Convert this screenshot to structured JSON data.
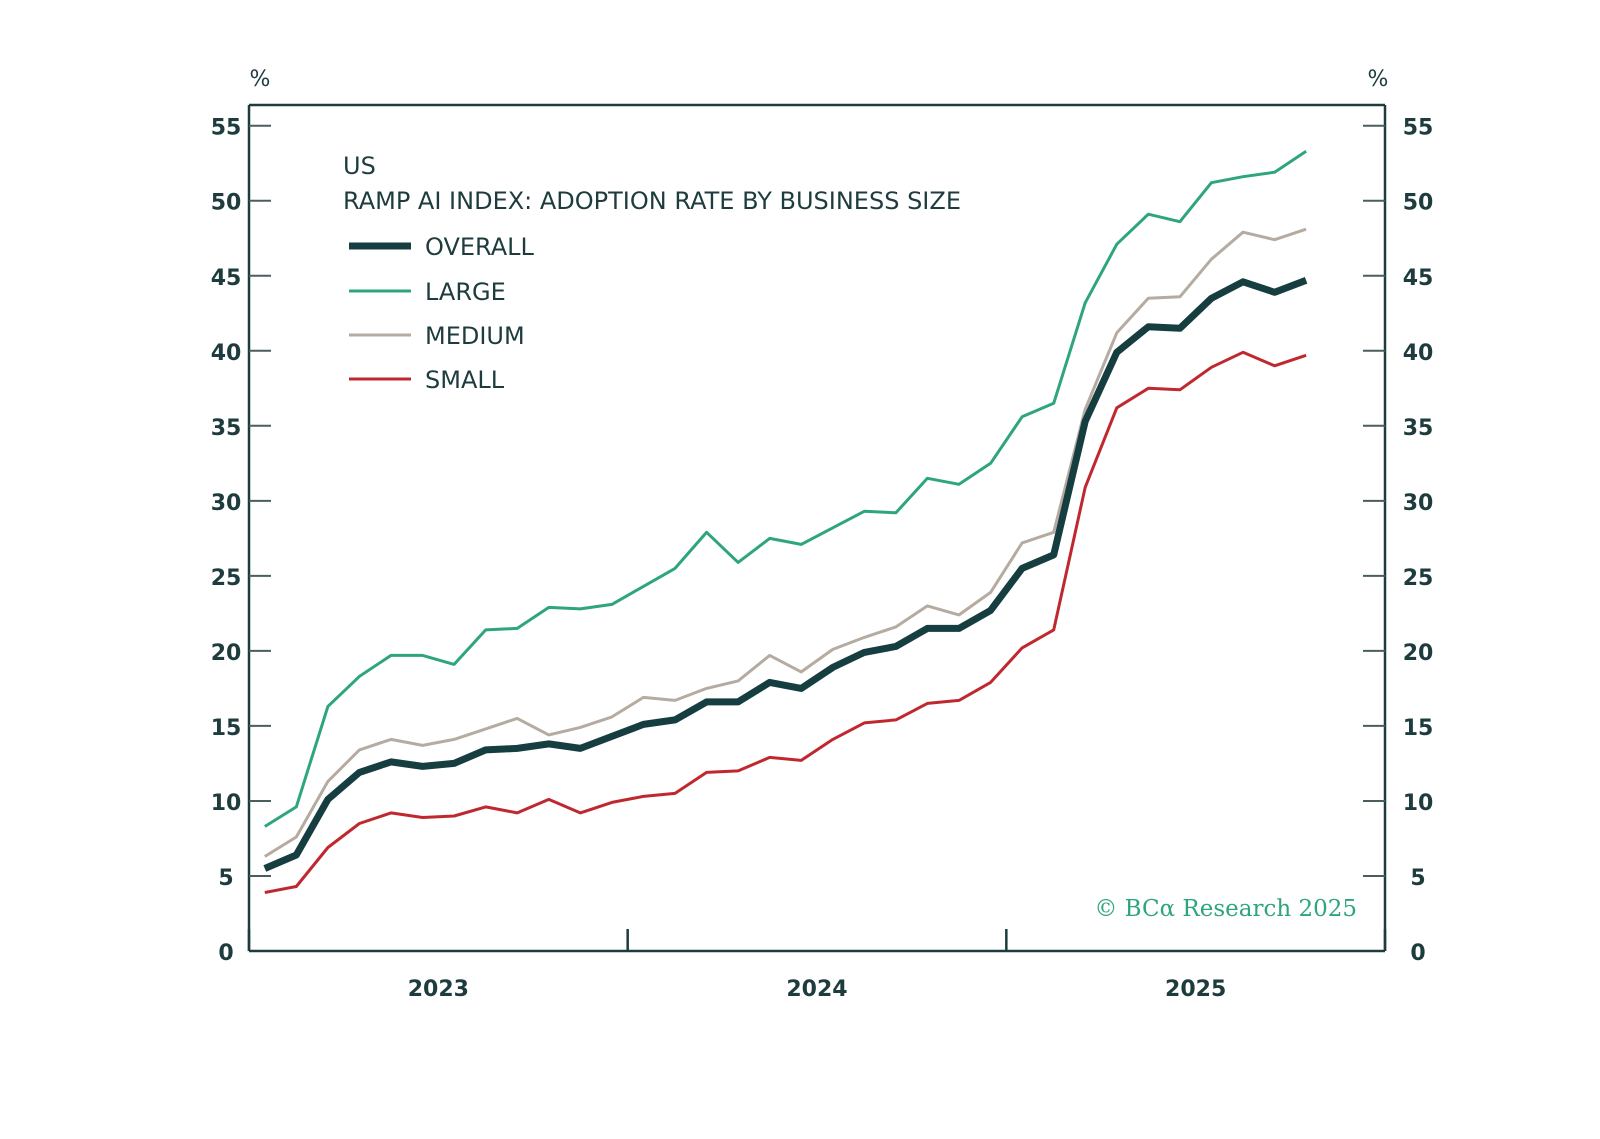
{
  "chart_data": {
    "type": "line",
    "title": "RAMP AI INDEX: ADOPTION RATE BY BUSINESS SIZE",
    "subtitle": "US",
    "xlabel": "",
    "ylabel_left": "%",
    "ylabel_right": "%",
    "ylim": [
      0,
      55
    ],
    "yticks": [
      0,
      5,
      10,
      15,
      20,
      25,
      30,
      35,
      40,
      45,
      50,
      55
    ],
    "xrange": [
      "2023-01",
      "2025-12"
    ],
    "year_labels": [
      "2023",
      "2024",
      "2025"
    ],
    "legend_position": "top-left",
    "grid": false,
    "credit": "© BCα Research 2025",
    "x": [
      "2023-01",
      "2023-02",
      "2023-03",
      "2023-04",
      "2023-05",
      "2023-06",
      "2023-07",
      "2023-08",
      "2023-09",
      "2023-10",
      "2023-11",
      "2023-12",
      "2024-01",
      "2024-02",
      "2024-03",
      "2024-04",
      "2024-05",
      "2024-06",
      "2024-07",
      "2024-08",
      "2024-09",
      "2024-10",
      "2024-11",
      "2024-12",
      "2025-01",
      "2025-02",
      "2025-03",
      "2025-04",
      "2025-05",
      "2025-06",
      "2025-07",
      "2025-08",
      "2025-09",
      "2025-10"
    ],
    "series": [
      {
        "name": "OVERALL",
        "color": "#163d40",
        "values": [
          5.5,
          6.4,
          10.1,
          11.9,
          12.6,
          12.3,
          12.5,
          13.4,
          13.5,
          13.8,
          13.5,
          14.3,
          15.1,
          15.4,
          16.6,
          16.6,
          17.9,
          17.5,
          18.9,
          19.9,
          20.3,
          21.5,
          21.5,
          22.7,
          25.5,
          26.4,
          35.3,
          39.9,
          41.6,
          41.5,
          43.5,
          44.6,
          43.9,
          44.7
        ]
      },
      {
        "name": "LARGE",
        "color": "#2ea57c",
        "values": [
          8.3,
          9.6,
          16.3,
          18.3,
          19.7,
          19.7,
          19.1,
          21.4,
          21.5,
          22.9,
          22.8,
          23.1,
          24.3,
          25.5,
          27.9,
          25.9,
          27.5,
          27.1,
          28.2,
          29.3,
          29.2,
          31.5,
          31.1,
          32.5,
          35.6,
          36.5,
          43.2,
          47.1,
          49.1,
          48.6,
          51.2,
          51.6,
          51.9,
          53.3
        ]
      },
      {
        "name": "MEDIUM",
        "color": "#b5aba0",
        "values": [
          6.3,
          7.6,
          11.3,
          13.4,
          14.1,
          13.7,
          14.1,
          14.8,
          15.5,
          14.4,
          14.9,
          15.6,
          16.9,
          16.7,
          17.5,
          18.0,
          19.7,
          18.6,
          20.1,
          20.9,
          21.6,
          23.0,
          22.4,
          23.9,
          27.2,
          27.9,
          36.1,
          41.2,
          43.5,
          43.6,
          46.1,
          47.9,
          47.4,
          48.1
        ]
      },
      {
        "name": "SMALL",
        "color": "#c0282f",
        "values": [
          3.9,
          4.3,
          6.9,
          8.5,
          9.2,
          8.9,
          9.0,
          9.6,
          9.2,
          10.1,
          9.2,
          9.9,
          10.3,
          10.5,
          11.9,
          12.0,
          12.9,
          12.7,
          14.1,
          15.2,
          15.4,
          16.5,
          16.7,
          17.9,
          20.2,
          21.4,
          30.9,
          36.2,
          37.5,
          37.4,
          38.9,
          39.9,
          39.0,
          39.7
        ]
      }
    ]
  },
  "colors": {
    "axis": "#1e3c3e",
    "text": "#1e3c3e",
    "credit": "#2ea57c"
  }
}
